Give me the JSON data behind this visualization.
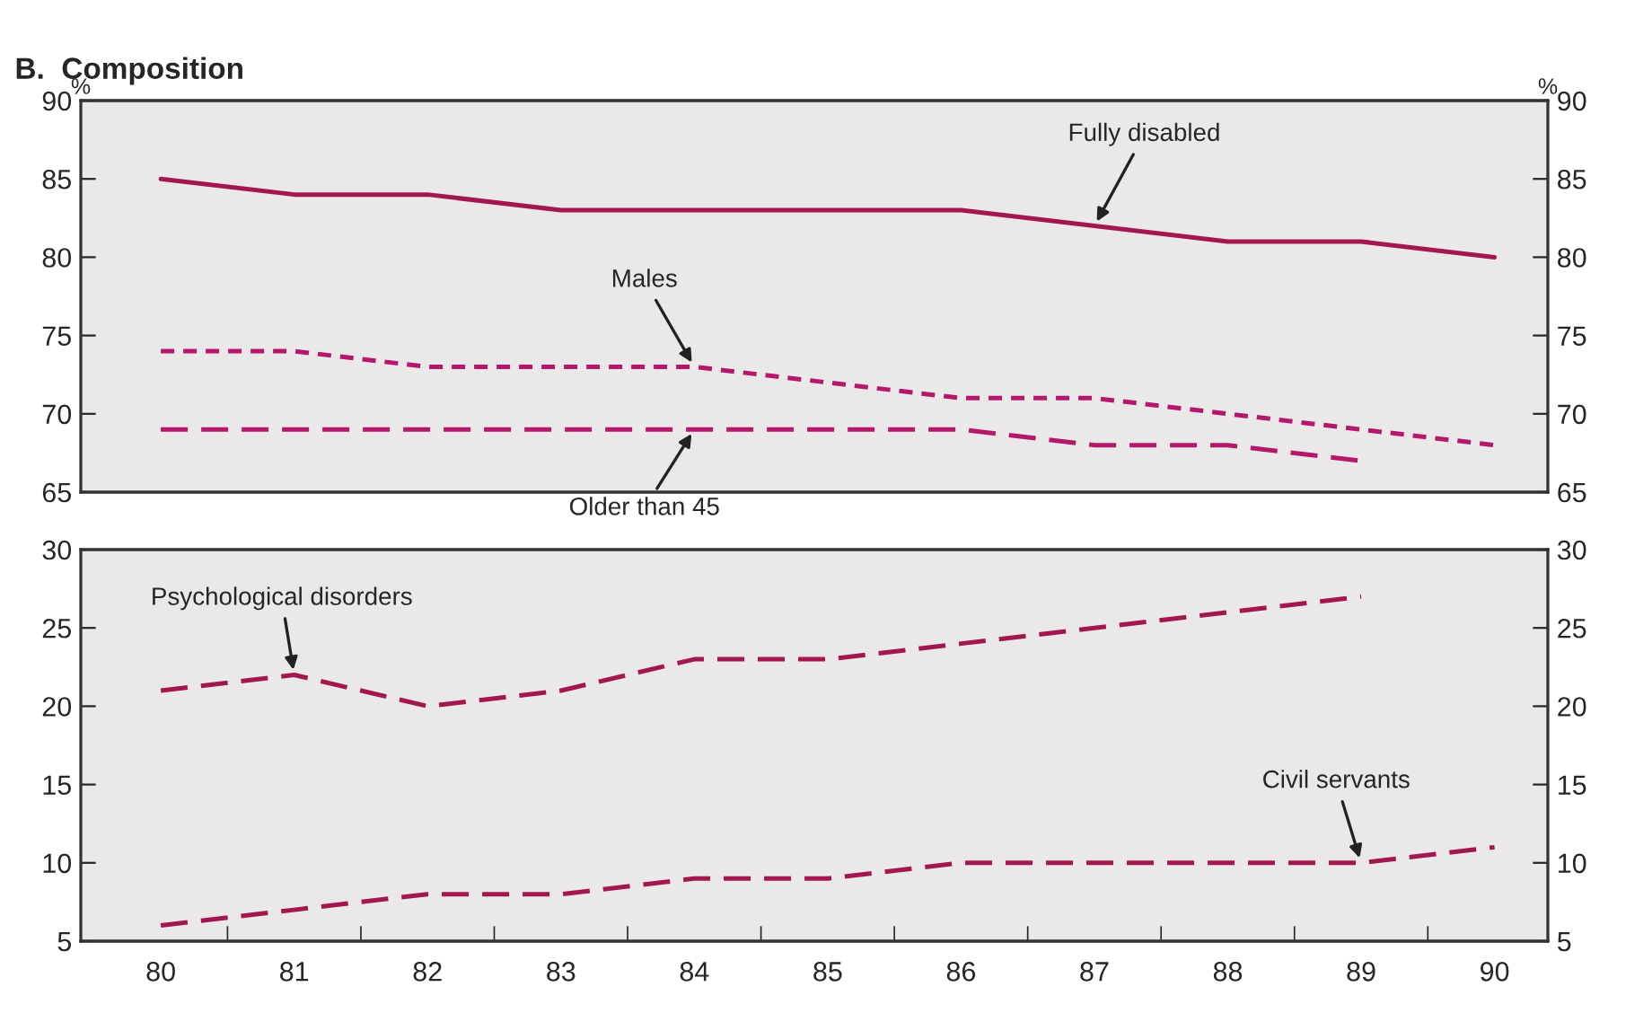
{
  "chart_data": [
    {
      "type": "line",
      "title": "B.  Composition",
      "ylabel": "%",
      "y2label": "%",
      "x": [
        80,
        81,
        82,
        83,
        84,
        85,
        86,
        87,
        88,
        89,
        90
      ],
      "series": [
        {
          "color": "#a3174f",
          "line_style": "solid",
          "values": [
            85,
            84,
            84,
            83,
            83,
            83,
            83,
            82,
            81,
            81,
            80
          ]
        },
        {
          "color": "#b5176a",
          "line_style": "dotted",
          "values": [
            74,
            74,
            73,
            73,
            73,
            72,
            71,
            71,
            70,
            69,
            68
          ]
        },
        {
          "color": "#b5176a",
          "line_style": "dashed",
          "values": [
            69,
            69,
            69,
            69,
            69,
            69,
            69,
            68,
            68,
            67,
            null
          ]
        }
      ],
      "annotations": [
        {
          "text": "Fully disabled",
          "x": 87,
          "y": 82
        },
        {
          "text": "Males",
          "x": 84,
          "y": 73
        },
        {
          "text": "Older than 45",
          "x": 84,
          "y": 69
        }
      ],
      "xlim": [
        79.4,
        90.4
      ],
      "ylim": [
        65,
        90
      ],
      "yticks": [
        65,
        70,
        75,
        80,
        85,
        90
      ],
      "y2lim": [
        65,
        90
      ],
      "y2ticks": [
        65,
        70,
        75,
        80,
        85,
        90
      ],
      "tick_labels": "y",
      "grid": false,
      "legend": false
    },
    {
      "type": "line",
      "x": [
        80,
        81,
        82,
        83,
        84,
        85,
        86,
        87,
        88,
        89,
        90
      ],
      "series": [
        {
          "color": "#a3174f",
          "line_style": "dashed",
          "values": [
            21,
            22,
            20,
            21,
            23,
            23,
            24,
            25,
            26,
            27,
            null
          ]
        },
        {
          "color": "#a3174f",
          "line_style": "dashed",
          "values": [
            6,
            7,
            8,
            8,
            9,
            9,
            10,
            10,
            10,
            10,
            11
          ]
        }
      ],
      "annotations": [
        {
          "text": "Psychological disorders",
          "x": 81,
          "y": 22
        },
        {
          "text": "Civil servants",
          "x": 89,
          "y": 10
        }
      ],
      "xlim": [
        79.4,
        90.4
      ],
      "xticks": [
        80,
        {
          "value": 80.5,
          "label": null
        },
        81,
        {
          "value": 81.5,
          "label": null
        },
        82,
        {
          "value": 82.5,
          "label": null
        },
        83,
        {
          "value": 83.5,
          "label": null
        },
        84,
        {
          "value": 84.5,
          "label": null
        },
        85,
        {
          "value": 85.5,
          "label": null
        },
        86,
        {
          "value": 86.5,
          "label": null
        },
        87,
        {
          "value": 87.5,
          "label": null
        },
        88,
        {
          "value": 88.5,
          "label": null
        },
        89,
        {
          "value": 89.5,
          "label": null
        },
        90
      ],
      "ylim": [
        5,
        30
      ],
      "yticks": [
        5,
        10,
        15,
        20,
        25,
        30
      ],
      "y2lim": [
        5,
        30
      ],
      "y2ticks": [
        5,
        10,
        15,
        20,
        25,
        30
      ],
      "grid": false,
      "legend": false
    }
  ]
}
